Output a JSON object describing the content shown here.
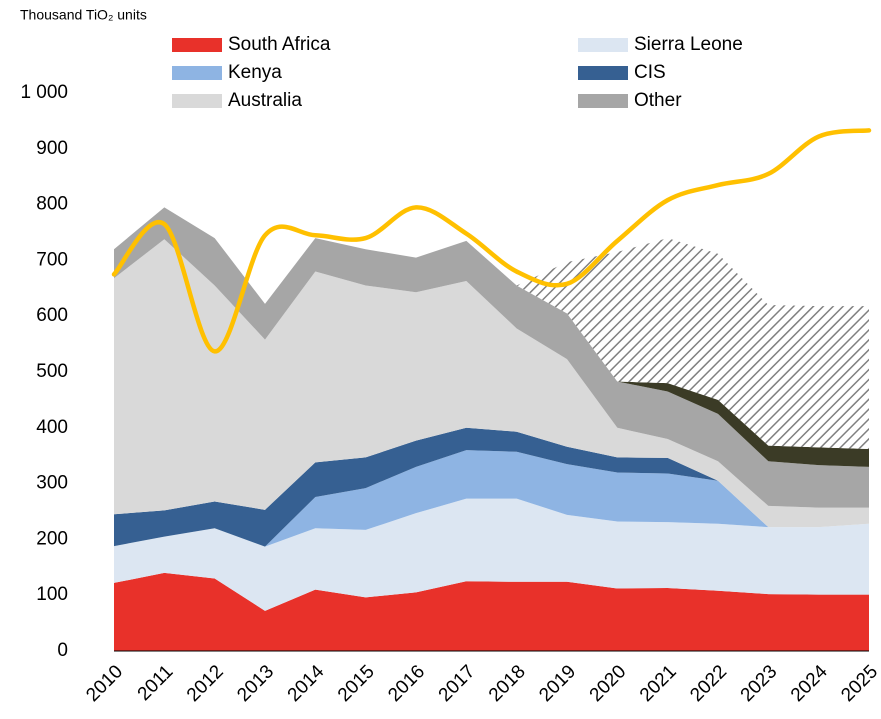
{
  "chart_data": {
    "type": "stacked-area-line",
    "y_axis_title": "Thousand TiO₂ units",
    "categories": [
      "2010",
      "2011",
      "2012",
      "2013",
      "2014",
      "2015",
      "2016",
      "2017",
      "2018",
      "2019",
      "2020",
      "2021",
      "2022",
      "2023",
      "2024",
      "2025"
    ],
    "series": [
      {
        "name": "South Africa",
        "color": "#e8312a",
        "values": [
          122,
          140,
          130,
          72,
          110,
          96,
          105,
          125,
          124,
          124,
          112,
          113,
          108,
          102,
          101,
          101
        ]
      },
      {
        "name": "Sierra Leone",
        "color": "#dce6f2",
        "values": [
          66,
          65,
          90,
          115,
          110,
          121,
          142,
          148,
          149,
          120,
          120,
          118,
          120,
          120,
          121,
          127
        ]
      },
      {
        "name": "Kenya",
        "color": "#8eb4e3",
        "values": [
          0,
          0,
          0,
          0,
          56,
          75,
          83,
          87,
          84,
          91,
          88,
          87,
          77,
          0,
          0,
          0
        ]
      },
      {
        "name": "CIS",
        "color": "#366092",
        "values": [
          57,
          47,
          48,
          66,
          62,
          55,
          47,
          40,
          36,
          31,
          27,
          28,
          0,
          0,
          0,
          0
        ]
      },
      {
        "name": "Australia",
        "color": "#d9d9d9",
        "values": [
          423,
          486,
          387,
          305,
          342,
          308,
          266,
          263,
          185,
          157,
          53,
          34,
          35,
          38,
          35,
          29
        ]
      },
      {
        "name": "Other",
        "color": "#a6a6a6",
        "values": [
          52,
          57,
          85,
          64,
          60,
          65,
          62,
          72,
          77,
          82,
          83,
          85,
          85,
          80,
          76,
          73
        ]
      },
      {
        "color": "#3b3b26",
        "values": [
          0,
          0,
          0,
          0,
          0,
          0,
          0,
          0,
          0,
          0,
          0,
          15,
          25,
          28,
          32,
          32
        ]
      },
      {
        "color": "#808080",
        "pattern": "hatch",
        "values": [
          0,
          0,
          0,
          0,
          0,
          0,
          0,
          0,
          0,
          92,
          232,
          260,
          262,
          252,
          253,
          256
        ]
      }
    ],
    "line": {
      "color": "#ffc000",
      "values": [
        675,
        765,
        537,
        745,
        745,
        740,
        795,
        748,
        680,
        658,
        735,
        808,
        835,
        855,
        922,
        933
      ]
    },
    "ylim": [
      0,
      1000
    ],
    "yticks": [
      0,
      100,
      200,
      300,
      400,
      500,
      600,
      700,
      800,
      900,
      {
        "value": 1000,
        "label": "1 000"
      }
    ],
    "grid": false
  }
}
